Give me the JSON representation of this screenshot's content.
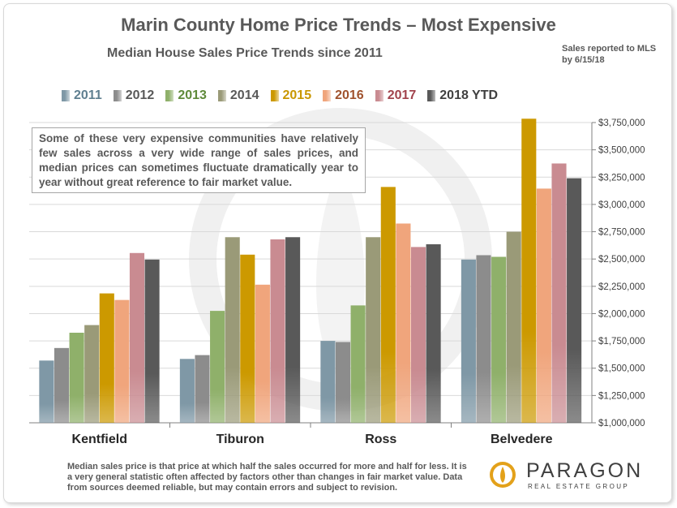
{
  "title": "Marin County Home Price Trends – Most Expensive",
  "subtitle": "Median House Sales Price Trends since 2011",
  "note": "Sales reported to MLS by 6/15/18",
  "annotation": "Some of these very expensive communities have relatively few sales across a very wide range of sales prices, and median prices can sometimes fluctuate dramatically year to year without great reference to fair market value.",
  "footer": "Median sales price is that price at which half the sales occurred for more and half for less. It is a very general statistic often affected by factors other than changes in fair market value. Data from sources deemed reliable, but may contain errors and subject to revision.",
  "logo": {
    "name": "PARAGON",
    "tagline": "REAL ESTATE GROUP",
    "color": "#e3a11a"
  },
  "legend": [
    {
      "label": "2011",
      "color": "#7f98a6",
      "text_color": "#5f7f90"
    },
    {
      "label": "2012",
      "color": "#8c8c8c",
      "text_color": "#595959"
    },
    {
      "label": "2013",
      "color": "#8fb06a",
      "text_color": "#5f8a3a"
    },
    {
      "label": "2014",
      "color": "#9a9a78",
      "text_color": "#595959"
    },
    {
      "label": "2015",
      "color": "#cc9900",
      "text_color": "#c99700"
    },
    {
      "label": "2016",
      "color": "#f0a57c",
      "text_color": "#a0522d"
    },
    {
      "label": "2017",
      "color": "#c98b91",
      "text_color": "#a1434d"
    },
    {
      "label": "2018 YTD",
      "color": "#595959",
      "text_color": "#404040"
    }
  ],
  "chart_data": {
    "type": "bar",
    "title": "Marin County Home Price Trends – Most Expensive",
    "subtitle": "Median House Sales Price Trends since 2011",
    "categories": [
      "Kentfield",
      "Tiburon",
      "Ross",
      "Belvedere"
    ],
    "series": [
      {
        "name": "2011",
        "values": [
          1570000,
          1585000,
          1750000,
          2495000
        ]
      },
      {
        "name": "2012",
        "values": [
          1685000,
          1620000,
          1740000,
          2535000
        ]
      },
      {
        "name": "2013",
        "values": [
          1825000,
          2025000,
          2075000,
          2520000
        ]
      },
      {
        "name": "2014",
        "values": [
          1895000,
          2700000,
          2700000,
          2750000
        ]
      },
      {
        "name": "2015",
        "values": [
          2185000,
          2540000,
          3160000,
          3785000
        ]
      },
      {
        "name": "2016",
        "values": [
          2125000,
          2265000,
          2825000,
          3145000
        ]
      },
      {
        "name": "2017",
        "values": [
          2555000,
          2680000,
          2610000,
          3375000
        ]
      },
      {
        "name": "2018 YTD",
        "values": [
          2495000,
          2700000,
          2635000,
          3240000
        ]
      }
    ],
    "ylim": [
      1000000,
      3750000
    ],
    "yticks": [
      "$1,000,000",
      "$1,250,000",
      "$1,500,000",
      "$1,750,000",
      "$2,000,000",
      "$2,250,000",
      "$2,500,000",
      "$2,750,000",
      "$3,000,000",
      "$3,250,000",
      "$3,500,000",
      "$3,750,000"
    ],
    "ytick_values": [
      1000000,
      1250000,
      1500000,
      1750000,
      2000000,
      2250000,
      2500000,
      2750000,
      3000000,
      3250000,
      3500000,
      3750000
    ],
    "grid": true,
    "legend_position": "top"
  }
}
